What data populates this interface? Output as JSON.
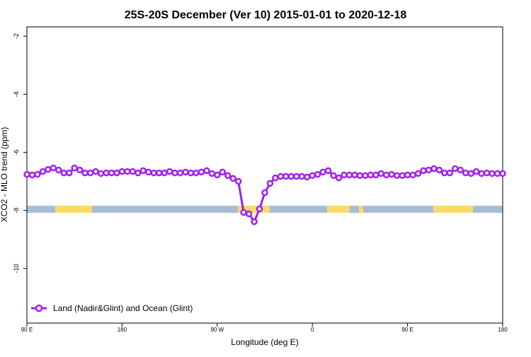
{
  "chart_data": {
    "type": "line",
    "title": "25S-20S December (Ver 10)   2015-01-01 to 2020-12-18",
    "x_label": "Longitude (deg E)",
    "y_label": "XCO2 - MLO trend (ppm)",
    "x": [
      90,
      95,
      100,
      105,
      110,
      115,
      120,
      125,
      130,
      135,
      140,
      145,
      150,
      155,
      160,
      165,
      170,
      175,
      180,
      185,
      190,
      195,
      200,
      205,
      210,
      215,
      220,
      225,
      230,
      235,
      240,
      245,
      250,
      255,
      260,
      265,
      270,
      275,
      280,
      285,
      290,
      295,
      300,
      305,
      310,
      315,
      320,
      325,
      330,
      335,
      340,
      345,
      350,
      355,
      360,
      365,
      370,
      375,
      380,
      385,
      390,
      395,
      400,
      405,
      410,
      415,
      420,
      425,
      430,
      435,
      440,
      445,
      450,
      455,
      460,
      465,
      470,
      475,
      480,
      485,
      490,
      495,
      500,
      505,
      510,
      515,
      520,
      525,
      530,
      535,
      540
    ],
    "series": [
      {
        "name": "Land (Nadir&Glint) and Ocean (Glint)",
        "color": "#a020f0",
        "values": [
          -6.76,
          -6.78,
          -6.76,
          -6.66,
          -6.59,
          -6.54,
          -6.61,
          -6.71,
          -6.71,
          -6.54,
          -6.61,
          -6.71,
          -6.71,
          -6.66,
          -6.73,
          -6.71,
          -6.71,
          -6.71,
          -6.66,
          -6.66,
          -6.66,
          -6.71,
          -6.63,
          -6.68,
          -6.71,
          -6.71,
          -6.71,
          -6.66,
          -6.71,
          -6.71,
          -6.68,
          -6.71,
          -6.71,
          -6.68,
          -6.63,
          -6.73,
          -6.78,
          -6.68,
          -6.8,
          -6.9,
          -7.0,
          -8.07,
          -8.12,
          -8.39,
          -7.95,
          -7.39,
          -7.07,
          -6.88,
          -6.83,
          -6.83,
          -6.83,
          -6.83,
          -6.83,
          -6.85,
          -6.8,
          -6.76,
          -6.68,
          -6.63,
          -6.8,
          -6.88,
          -6.78,
          -6.78,
          -6.78,
          -6.8,
          -6.8,
          -6.78,
          -6.78,
          -6.73,
          -6.78,
          -6.76,
          -6.8,
          -6.8,
          -6.78,
          -6.78,
          -6.73,
          -6.63,
          -6.61,
          -6.56,
          -6.61,
          -6.71,
          -6.71,
          -6.56,
          -6.61,
          -6.71,
          -6.73,
          -6.66,
          -6.73,
          -6.71,
          -6.73,
          -6.73,
          -6.73
        ]
      }
    ],
    "xlim": [
      90,
      540
    ],
    "xticks": [
      {
        "value": 90,
        "label": "90 E"
      },
      180,
      {
        "value": 270,
        "label": "90 W"
      },
      {
        "value": 360,
        "label": "0"
      },
      {
        "value": 450,
        "label": "90 E"
      },
      {
        "value": 540,
        "label": "180"
      }
    ],
    "ylim": [
      -11.88,
      -1.68
    ],
    "yticks": [
      -2,
      -4,
      -6,
      -8,
      -10
    ],
    "legend": "bottom-left"
  }
}
